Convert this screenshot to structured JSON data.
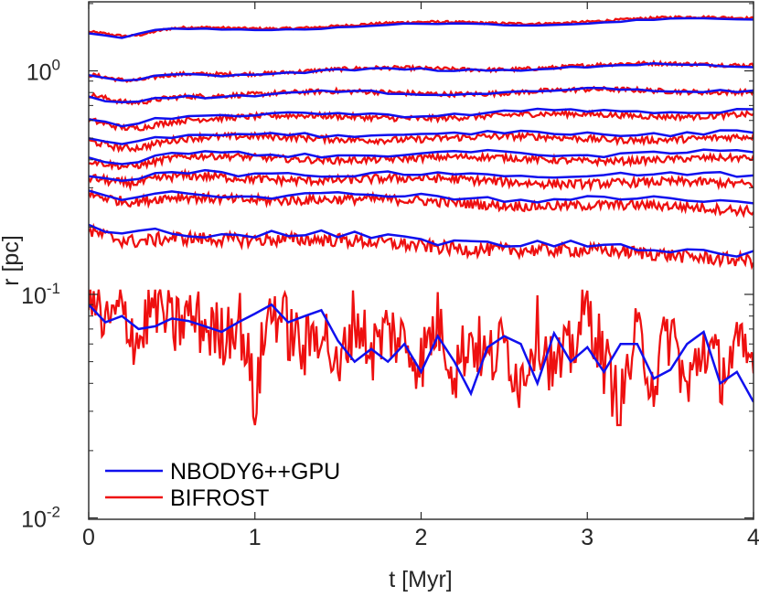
{
  "chart_data": {
    "type": "line",
    "title": "",
    "xlabel": "t [Myr]",
    "ylabel": "r [pc]",
    "xscale": "linear",
    "yscale": "log",
    "xlim": [
      0,
      4
    ],
    "ylim": [
      0.01,
      2
    ],
    "grid": false,
    "legend_position": "bottom-left",
    "x_ticks": [
      0,
      1,
      2,
      3,
      4
    ],
    "x_tick_labels": [
      "0",
      "1",
      "2",
      "3",
      "4"
    ],
    "y_ticks": [
      {
        "value": 0.01,
        "base": "10",
        "exp": "-2"
      },
      {
        "value": 0.1,
        "base": "10",
        "exp": "-1"
      },
      {
        "value": 1,
        "base": "10",
        "exp": "0"
      }
    ],
    "legend": [
      {
        "name": "NBODY6++GPU",
        "color": "#1010ee"
      },
      {
        "name": "BIFROST",
        "color": "#ee1010"
      }
    ],
    "series": [
      {
        "name": "NBODY6++GPU",
        "color": "#1010ee",
        "x": [
          0,
          0.1,
          0.2,
          0.3,
          0.4,
          0.5,
          0.6,
          0.7,
          0.8,
          0.9,
          1.0,
          1.1,
          1.2,
          1.3,
          1.4,
          1.5,
          1.6,
          1.7,
          1.8,
          1.9,
          2.0,
          2.1,
          2.2,
          2.3,
          2.4,
          2.5,
          2.6,
          2.7,
          2.8,
          2.9,
          3.0,
          3.1,
          3.2,
          3.3,
          3.4,
          3.5,
          3.6,
          3.7,
          3.8,
          3.9,
          4.0
        ],
        "curves": [
          {
            "r0": 1.5,
            "r1": 1.7,
            "amp": 0.01
          },
          {
            "r0": 0.95,
            "r1": 1.07,
            "amp": 0.02
          },
          {
            "r0": 0.77,
            "r1": 0.83,
            "amp": 0.025
          },
          {
            "r0": 0.62,
            "r1": 0.67,
            "amp": 0.03
          },
          {
            "r0": 0.51,
            "r1": 0.53,
            "amp": 0.035
          },
          {
            "r0": 0.42,
            "r1": 0.43,
            "amp": 0.035
          },
          {
            "r0": 0.35,
            "r1": 0.34,
            "amp": 0.045
          },
          {
            "r0": 0.29,
            "r1": 0.26,
            "amp": 0.05
          },
          {
            "r0": 0.2,
            "r1": 0.155,
            "amp": 0.07
          }
        ],
        "core_values": [
          0.09,
          0.075,
          0.08,
          0.07,
          0.072,
          0.078,
          0.076,
          0.072,
          0.068,
          0.075,
          0.082,
          0.09,
          0.075,
          0.08,
          0.085,
          0.062,
          0.05,
          0.057,
          0.05,
          0.06,
          0.045,
          0.065,
          0.05,
          0.036,
          0.058,
          0.065,
          0.06,
          0.04,
          0.067,
          0.05,
          0.058,
          0.045,
          0.06,
          0.06,
          0.042,
          0.046,
          0.06,
          0.068,
          0.04,
          0.045,
          0.033
        ]
      },
      {
        "name": "BIFROST",
        "color": "#ee1010",
        "x_range": [
          0,
          4
        ],
        "n_points": 400,
        "curves": [
          {
            "r0": 1.52,
            "r1": 1.73,
            "amp": 0.012
          },
          {
            "r0": 0.96,
            "r1": 1.08,
            "amp": 0.02
          },
          {
            "r0": 0.78,
            "r1": 0.82,
            "amp": 0.025
          },
          {
            "r0": 0.61,
            "r1": 0.64,
            "amp": 0.03
          },
          {
            "r0": 0.5,
            "r1": 0.5,
            "amp": 0.035
          },
          {
            "r0": 0.41,
            "r1": 0.4,
            "amp": 0.035
          },
          {
            "r0": 0.34,
            "r1": 0.31,
            "amp": 0.045
          },
          {
            "r0": 0.28,
            "r1": 0.24,
            "amp": 0.05
          },
          {
            "r0": 0.19,
            "r1": 0.145,
            "amp": 0.07
          }
        ],
        "core_values": [
          0.1,
          0.07,
          0.085,
          0.06,
          0.095,
          0.07,
          0.08,
          0.072,
          0.065,
          0.08,
          0.03,
          0.09,
          0.07,
          0.055,
          0.075,
          0.04,
          0.08,
          0.055,
          0.07,
          0.06,
          0.05,
          0.075,
          0.045,
          0.065,
          0.05,
          0.06,
          0.04,
          0.07,
          0.045,
          0.055,
          0.085,
          0.05,
          0.03,
          0.065,
          0.04,
          0.07,
          0.035,
          0.06,
          0.045,
          0.055,
          0.05
        ]
      }
    ]
  }
}
